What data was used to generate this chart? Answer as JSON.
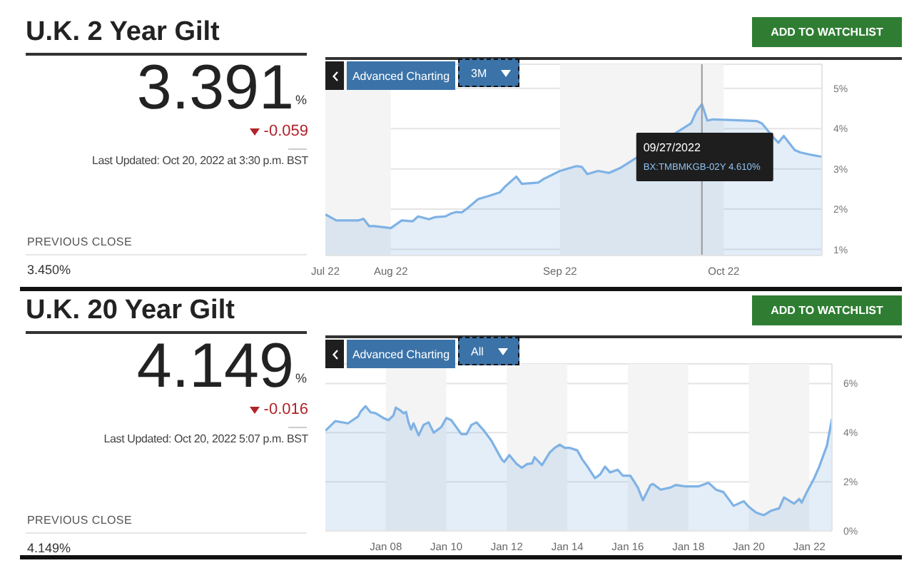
{
  "chart_data": [
    {
      "type": "area",
      "title": "U.K. 2 Year Gilt",
      "annotations": [
        "3.391",
        "%",
        "-0.059",
        "Last Updated: Oct 20, 2022 at 3:30 p.m. BST",
        "PREVIOUS CLOSE",
        "3.450%",
        "ADD TO WATCHLIST",
        "Advanced Charting",
        "3M",
        "09/27/2022",
        "BX:TMBMKGB-02Y  4.610%"
      ],
      "x": [
        "2022-07-20",
        "2022-07-22",
        "2022-07-26",
        "2022-07-27",
        "2022-07-28",
        "2022-07-29",
        "2022-08-01",
        "2022-08-03",
        "2022-08-05",
        "2022-08-06",
        "2022-08-08",
        "2022-08-09",
        "2022-08-11",
        "2022-08-12",
        "2022-08-13",
        "2022-08-14",
        "2022-08-15",
        "2022-08-17",
        "2022-08-19",
        "2022-08-21",
        "2022-08-22",
        "2022-08-24",
        "2022-08-25",
        "2022-08-28",
        "2022-08-29",
        "2022-09-01",
        "2022-09-02",
        "2022-09-04",
        "2022-09-05",
        "2022-09-06",
        "2022-09-08",
        "2022-09-10",
        "2022-09-12",
        "2022-09-14",
        "2022-09-25",
        "2022-09-26",
        "2022-09-27",
        "2022-09-28",
        "2022-09-29",
        "2022-09-30",
        "2022-10-07",
        "2022-10-08",
        "2022-10-10",
        "2022-10-11",
        "2022-10-12",
        "2022-10-14",
        "2022-10-15",
        "2022-10-17",
        "2022-10-19"
      ],
      "series": [
        {
          "color": "#7fb2e5",
          "values": [
            1.87,
            1.72,
            1.72,
            1.76,
            1.58,
            1.58,
            1.53,
            1.72,
            1.7,
            1.82,
            1.75,
            1.8,
            1.82,
            1.89,
            1.93,
            1.92,
            2.02,
            2.25,
            2.33,
            2.42,
            2.57,
            2.81,
            2.63,
            2.66,
            2.75,
            2.95,
            2.99,
            3.07,
            3.05,
            2.87,
            2.95,
            2.9,
            3.02,
            null,
            4.13,
            4.43,
            4.61,
            4.2,
            4.23,
            null,
            4.19,
            4.13,
            3.8,
            3.65,
            3.82,
            3.47,
            3.41,
            3.35,
            3.3
          ]
        }
      ],
      "xlim": [
        "2022-07-20",
        "2022-10-19"
      ],
      "xticks": [
        {
          "value": "2022-07-20",
          "label": "Jul 22"
        },
        {
          "value": "2022-08-01",
          "label": "Aug 22"
        },
        {
          "value": "2022-09-01",
          "label": "Sep 22"
        },
        {
          "value": "2022-10-01",
          "label": "Oct 22"
        }
      ],
      "ylim": [
        0.85,
        5.6
      ],
      "yticks": [
        {
          "value": 1,
          "label": "1%"
        },
        {
          "value": 2,
          "label": "2%"
        },
        {
          "value": 3,
          "label": "3%"
        },
        {
          "value": 4,
          "label": "4%"
        },
        {
          "value": 5,
          "label": "5%"
        }
      ],
      "grid": "y",
      "bands": [
        {
          "axis": "x",
          "from": "2022-07-20",
          "to": "2022-08-01",
          "color": "#f4f4f4"
        },
        {
          "axis": "x",
          "from": "2022-09-01",
          "to": "2022-10-01",
          "color": "#f4f4f4"
        }
      ],
      "ref_lines": [
        {
          "axis": "x",
          "value": "2022-09-27",
          "color": "#999999"
        }
      ]
    },
    {
      "type": "area",
      "title": "U.K. 20 Year Gilt",
      "annotations": [
        "4.149",
        "%",
        "-0.016",
        "Last Updated: Oct 20, 2022 5:07 p.m. BST",
        "PREVIOUS CLOSE",
        "4.149%",
        "ADD TO WATCHLIST",
        "Advanced Charting",
        "All"
      ],
      "x": [
        "2006-01",
        "2006-05",
        "2006-10",
        "2007-02",
        "2007-03",
        "2007-05",
        "2007-07",
        "2007-09",
        "2007-12",
        "2008-02",
        "2008-04",
        "2008-05",
        "2008-07",
        "2008-08",
        "2008-09",
        "2008-10",
        "2008-11",
        "2008-12",
        "2009-02",
        "2009-04",
        "2009-06",
        "2009-08",
        "2009-11",
        "2010-01",
        "2010-03",
        "2010-07",
        "2010-09",
        "2010-11",
        "2011-01",
        "2011-04",
        "2011-07",
        "2011-09",
        "2011-11",
        "2011-12",
        "2012-02",
        "2012-05",
        "2012-07",
        "2012-09",
        "2012-11",
        "2012-12",
        "2013-03",
        "2013-06",
        "2013-08",
        "2013-10",
        "2013-12",
        "2014-02",
        "2014-05",
        "2014-07",
        "2014-09",
        "2014-12",
        "2015-02",
        "2015-04",
        "2015-06",
        "2015-09",
        "2015-11",
        "2016-02",
        "2016-05",
        "2016-07",
        "2016-10",
        "2016-11",
        "2017-02",
        "2017-06",
        "2017-08",
        "2017-12",
        "2018-05",
        "2018-09",
        "2018-12",
        "2019-03",
        "2019-07",
        "2019-11",
        "2020-01",
        "2020-04",
        "2020-07",
        "2020-10",
        "2021-01",
        "2021-03",
        "2021-04",
        "2021-07",
        "2021-09",
        "2021-10",
        "2021-12",
        "2022-03",
        "2022-05",
        "2022-06",
        "2022-08",
        "2022-10"
      ],
      "series": [
        {
          "color": "#7fb2e5",
          "values": [
            4.08,
            4.47,
            4.38,
            4.66,
            4.85,
            5.08,
            4.83,
            4.79,
            4.6,
            4.51,
            4.7,
            5.02,
            4.89,
            4.79,
            4.85,
            4.42,
            4.13,
            4.38,
            3.89,
            4.32,
            4.42,
            4.0,
            4.23,
            4.6,
            4.51,
            3.94,
            3.94,
            4.32,
            4.42,
            4.08,
            3.66,
            3.28,
            2.91,
            2.81,
            3.09,
            2.72,
            2.57,
            2.72,
            2.75,
            3.0,
            2.68,
            3.19,
            3.38,
            3.51,
            3.38,
            3.38,
            3.28,
            2.91,
            2.62,
            2.15,
            2.3,
            2.62,
            2.38,
            2.49,
            2.25,
            2.25,
            1.77,
            1.25,
            1.87,
            1.91,
            1.68,
            1.77,
            1.87,
            1.81,
            1.81,
            1.96,
            1.68,
            1.58,
            1.02,
            1.21,
            0.98,
            0.74,
            0.64,
            0.83,
            0.92,
            1.36,
            1.3,
            1.11,
            1.3,
            1.15,
            1.58,
            2.15,
            2.62,
            2.91,
            3.47,
            4.57
          ]
        }
      ],
      "xlim": [
        "2006-01",
        "2022-10"
      ],
      "xticks": [
        {
          "value": "2008-01",
          "label": "Jan 08"
        },
        {
          "value": "2010-01",
          "label": "Jan 10"
        },
        {
          "value": "2012-01",
          "label": "Jan 12"
        },
        {
          "value": "2014-01",
          "label": "Jan 14"
        },
        {
          "value": "2016-01",
          "label": "Jan 16"
        },
        {
          "value": "2018-01",
          "label": "Jan 18"
        },
        {
          "value": "2020-01",
          "label": "Jan 20"
        },
        {
          "value": "2022-01",
          "label": "Jan 22"
        }
      ],
      "ylim": [
        0,
        6.8
      ],
      "yticks": [
        {
          "value": 0,
          "label": "0%"
        },
        {
          "value": 2,
          "label": "2%"
        },
        {
          "value": 4,
          "label": "4%"
        },
        {
          "value": 6,
          "label": "6%"
        }
      ],
      "grid": "y",
      "bands": [
        {
          "axis": "x",
          "from": "2008-01",
          "to": "2010-01",
          "color": "#f4f4f4"
        },
        {
          "axis": "x",
          "from": "2012-01",
          "to": "2014-01",
          "color": "#f4f4f4"
        },
        {
          "axis": "x",
          "from": "2016-01",
          "to": "2018-01",
          "color": "#f4f4f4"
        },
        {
          "axis": "x",
          "from": "2020-01",
          "to": "2022-01",
          "color": "#f4f4f4"
        }
      ]
    }
  ]
}
